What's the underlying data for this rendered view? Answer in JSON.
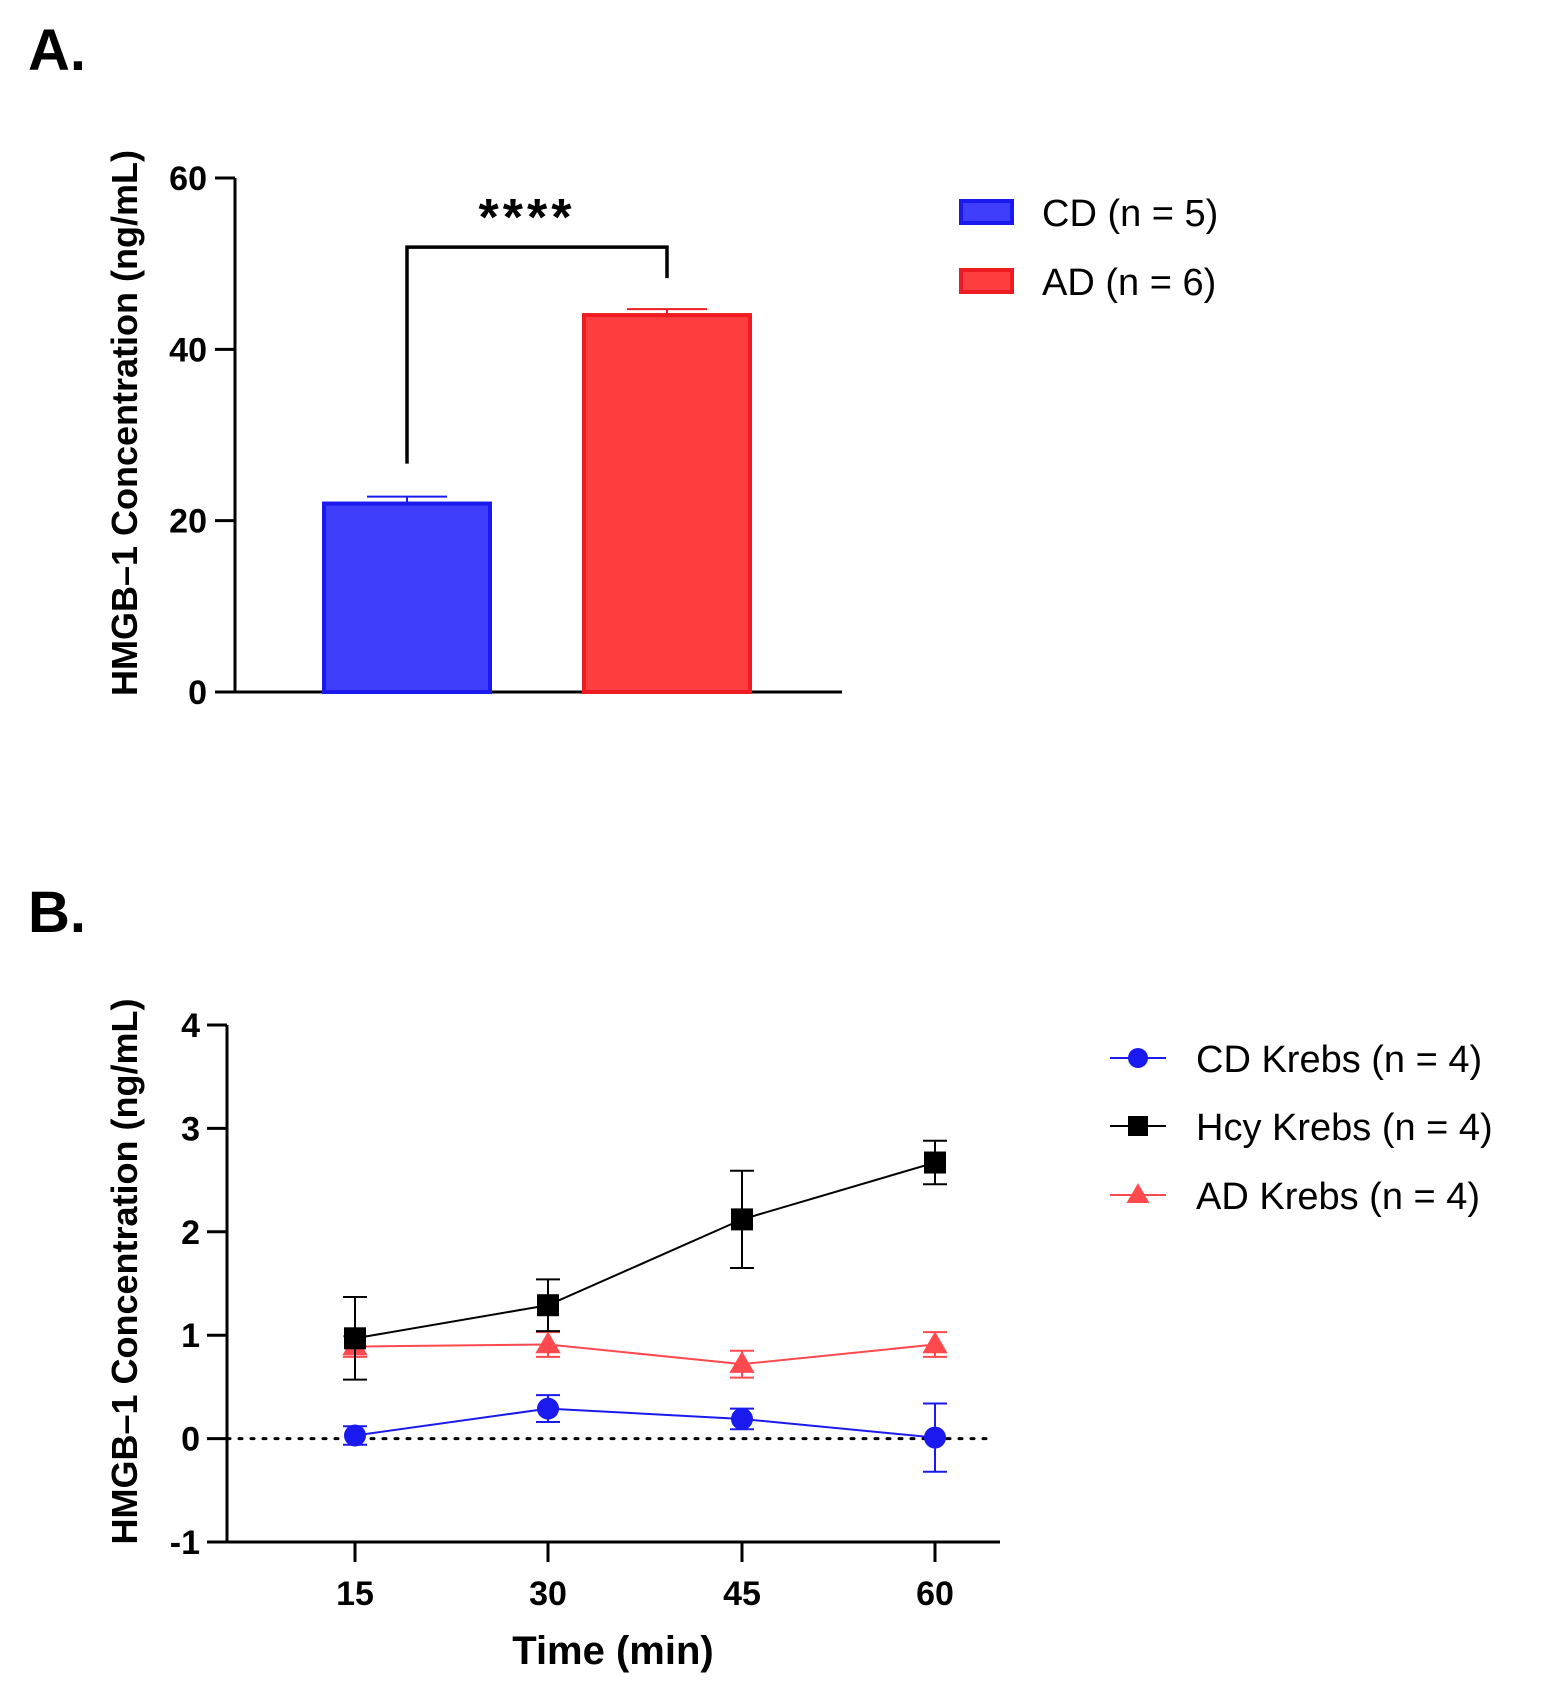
{
  "panels": {
    "a_label": "A.",
    "b_label": "B."
  },
  "chart_data": [
    {
      "type": "bar",
      "panel": "A",
      "categories": [
        "CD (n = 5)",
        "AD (n = 6)"
      ],
      "values": [
        22.0,
        44.0
      ],
      "errors": [
        0.8,
        0.7
      ],
      "colors": [
        "#3f3ffb",
        "#fe3d40"
      ],
      "edge_colors": [
        "#1a1aee",
        "#ee1c22"
      ],
      "ylabel": "HMGB–1 Concentration (ng/mL)",
      "xlabel": "",
      "ylim": [
        0,
        60
      ],
      "yticks": [
        0,
        20,
        40,
        60
      ],
      "significance": {
        "between": [
          0,
          1
        ],
        "label": "****"
      },
      "legend": {
        "position": "right",
        "entries": [
          "CD (n = 5)",
          "AD (n = 6)"
        ]
      }
    },
    {
      "type": "line",
      "panel": "B",
      "x": [
        15,
        30,
        45,
        60
      ],
      "xticks": [
        "15",
        "30",
        "45",
        "60"
      ],
      "xlabel": "Time (min)",
      "ylabel": "HMGB–1 Concentration (ng/mL)",
      "ylim": [
        -1,
        4
      ],
      "yticks": [
        -1,
        0,
        1,
        2,
        3,
        4
      ],
      "reference_line": {
        "y": 0,
        "style": "dotted"
      },
      "series": [
        {
          "name": "CD Krebs (n = 4)",
          "marker": "circle",
          "color": "#1a1aee",
          "values": [
            0.03,
            0.29,
            0.19,
            0.01
          ],
          "errors": [
            0.09,
            0.13,
            0.1,
            0.33
          ]
        },
        {
          "name": "Hcy Krebs (n = 4)",
          "marker": "square",
          "color": "#000000",
          "values": [
            0.97,
            1.29,
            2.12,
            2.67
          ],
          "errors": [
            0.4,
            0.25,
            0.47,
            0.21
          ]
        },
        {
          "name": "AD Krebs (n = 4)",
          "marker": "triangle",
          "color": "#fe4a4f",
          "values": [
            0.89,
            0.91,
            0.72,
            0.91
          ],
          "errors": [
            0.1,
            0.12,
            0.13,
            0.12
          ]
        }
      ],
      "legend": {
        "position": "right"
      }
    }
  ]
}
